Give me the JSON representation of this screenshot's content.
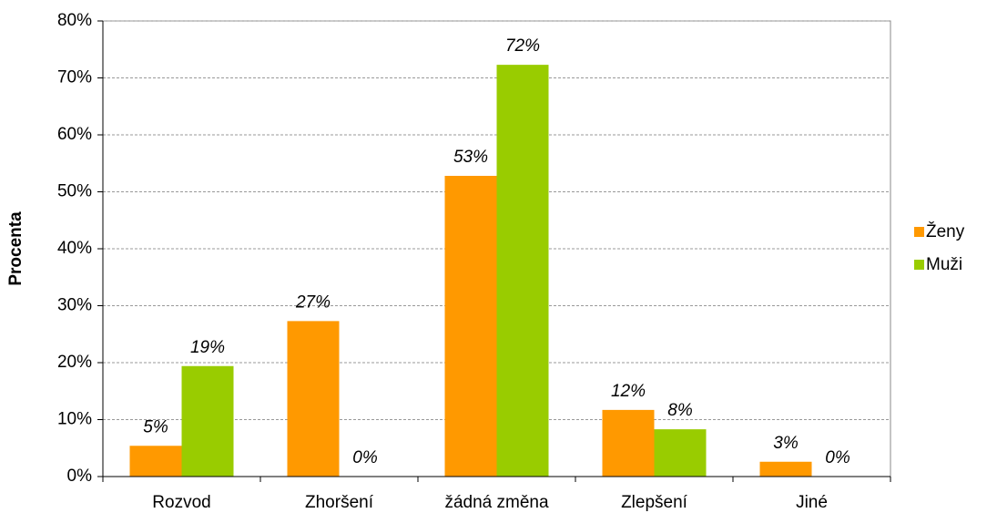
{
  "chart_data": {
    "type": "bar",
    "y_label": "Procenta",
    "categories": [
      "Rozvod",
      "Zhoršení",
      "žádná změna",
      "Zlepšení",
      "Jiné"
    ],
    "series": [
      {
        "name": "Ženy",
        "color": "#ff9900",
        "values": [
          5.4,
          27.3,
          52.8,
          11.7,
          2.6
        ],
        "value_labels": [
          "5%",
          "27%",
          "53%",
          "12%",
          "3%"
        ]
      },
      {
        "name": "Muži",
        "color": "#99cc00",
        "values": [
          19.4,
          0,
          72.3,
          8.3,
          0
        ],
        "value_labels": [
          "19%",
          "0%",
          "72%",
          "8%",
          "0%"
        ]
      }
    ],
    "ylim": [
      0,
      80
    ],
    "yticks": [
      {
        "value": 0,
        "label": "0%"
      },
      {
        "value": 10,
        "label": "10%"
      },
      {
        "value": 20,
        "label": "20%"
      },
      {
        "value": 30,
        "label": "30%"
      },
      {
        "value": 40,
        "label": "40%"
      },
      {
        "value": 50,
        "label": "50%"
      },
      {
        "value": 60,
        "label": "60%"
      },
      {
        "value": 70,
        "label": "70%"
      },
      {
        "value": 80,
        "label": "80%"
      }
    ],
    "grid": true,
    "legend": "right"
  }
}
